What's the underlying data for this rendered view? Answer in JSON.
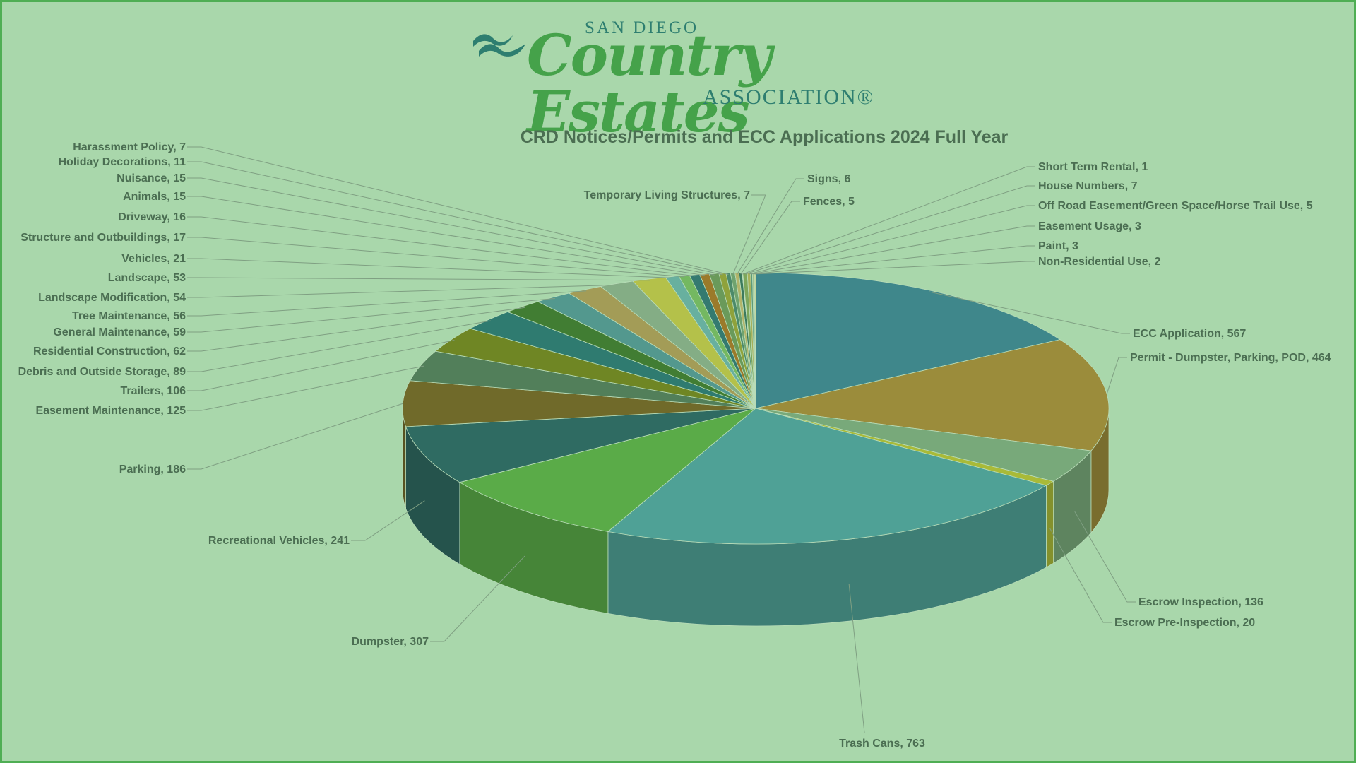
{
  "logo": {
    "line1": "SAN DIEGO",
    "line2": "Country Estates",
    "line3": "ASSOCIATION®"
  },
  "chart_data": {
    "type": "pie",
    "title": "CRD Notices/Permits and ECC Applications 2024 Full Year",
    "slices": [
      {
        "label": "ECC Application",
        "value": 567,
        "color": "#3f878b"
      },
      {
        "label": "Permit - Dumpster, Parking, POD",
        "value": 464,
        "color": "#9b8c3b"
      },
      {
        "label": "Escrow Inspection",
        "value": 136,
        "color": "#78a97a"
      },
      {
        "label": "Escrow Pre-Inspection",
        "value": 20,
        "color": "#a9ba38"
      },
      {
        "label": "Trash Cans",
        "value": 763,
        "color": "#4fa196"
      },
      {
        "label": "Dumpster",
        "value": 307,
        "color": "#5aab48"
      },
      {
        "label": "Recreational Vehicles",
        "value": 241,
        "color": "#2f6b62"
      },
      {
        "label": "Parking",
        "value": 186,
        "color": "#706a2a"
      },
      {
        "label": "Easement Maintenance",
        "value": 125,
        "color": "#527f5a"
      },
      {
        "label": "Trailers",
        "value": 106,
        "color": "#6f8624"
      },
      {
        "label": "Debris and Outside Storage",
        "value": 89,
        "color": "#2f7b70"
      },
      {
        "label": "Residential Construction",
        "value": 62,
        "color": "#417d33"
      },
      {
        "label": "General Maintenance",
        "value": 59,
        "color": "#53988e"
      },
      {
        "label": "Tree Maintenance",
        "value": 56,
        "color": "#a39c57"
      },
      {
        "label": "Landscape Modification",
        "value": 54,
        "color": "#84ad85"
      },
      {
        "label": "Landscape",
        "value": 53,
        "color": "#b4c14a"
      },
      {
        "label": "Vehicles",
        "value": 21,
        "color": "#68b09f"
      },
      {
        "label": "Structure and Outbuildings",
        "value": 17,
        "color": "#74b861"
      },
      {
        "label": "Driveway",
        "value": 16,
        "color": "#347a70"
      },
      {
        "label": "Animals",
        "value": 15,
        "color": "#9b7a2a"
      },
      {
        "label": "Nuisance",
        "value": 15,
        "color": "#6a9a5a"
      },
      {
        "label": "Holiday Decorations",
        "value": 11,
        "color": "#8fa23b"
      },
      {
        "label": "Harassment Policy",
        "value": 7,
        "color": "#4c8a6a"
      },
      {
        "label": "Temporary Living Structures",
        "value": 7,
        "color": "#6fa36f"
      },
      {
        "label": "Signs",
        "value": 6,
        "color": "#b1b46a"
      },
      {
        "label": "Fences",
        "value": 5,
        "color": "#3c7a5e"
      },
      {
        "label": "Short Term Rental",
        "value": 1,
        "color": "#c7c36b"
      },
      {
        "label": "House Numbers",
        "value": 7,
        "color": "#7da75c"
      },
      {
        "label": "Off Road Easement/Green Space/Horse Trail Use",
        "value": 5,
        "color": "#a7b05a"
      },
      {
        "label": "Easement Usage",
        "value": 3,
        "color": "#5e9b7a"
      },
      {
        "label": "Paint",
        "value": 3,
        "color": "#9cc08d"
      },
      {
        "label": "Non-Residential Use",
        "value": 2,
        "color": "#c9d28a"
      }
    ],
    "legend": "none",
    "data_labels": "category, value"
  }
}
